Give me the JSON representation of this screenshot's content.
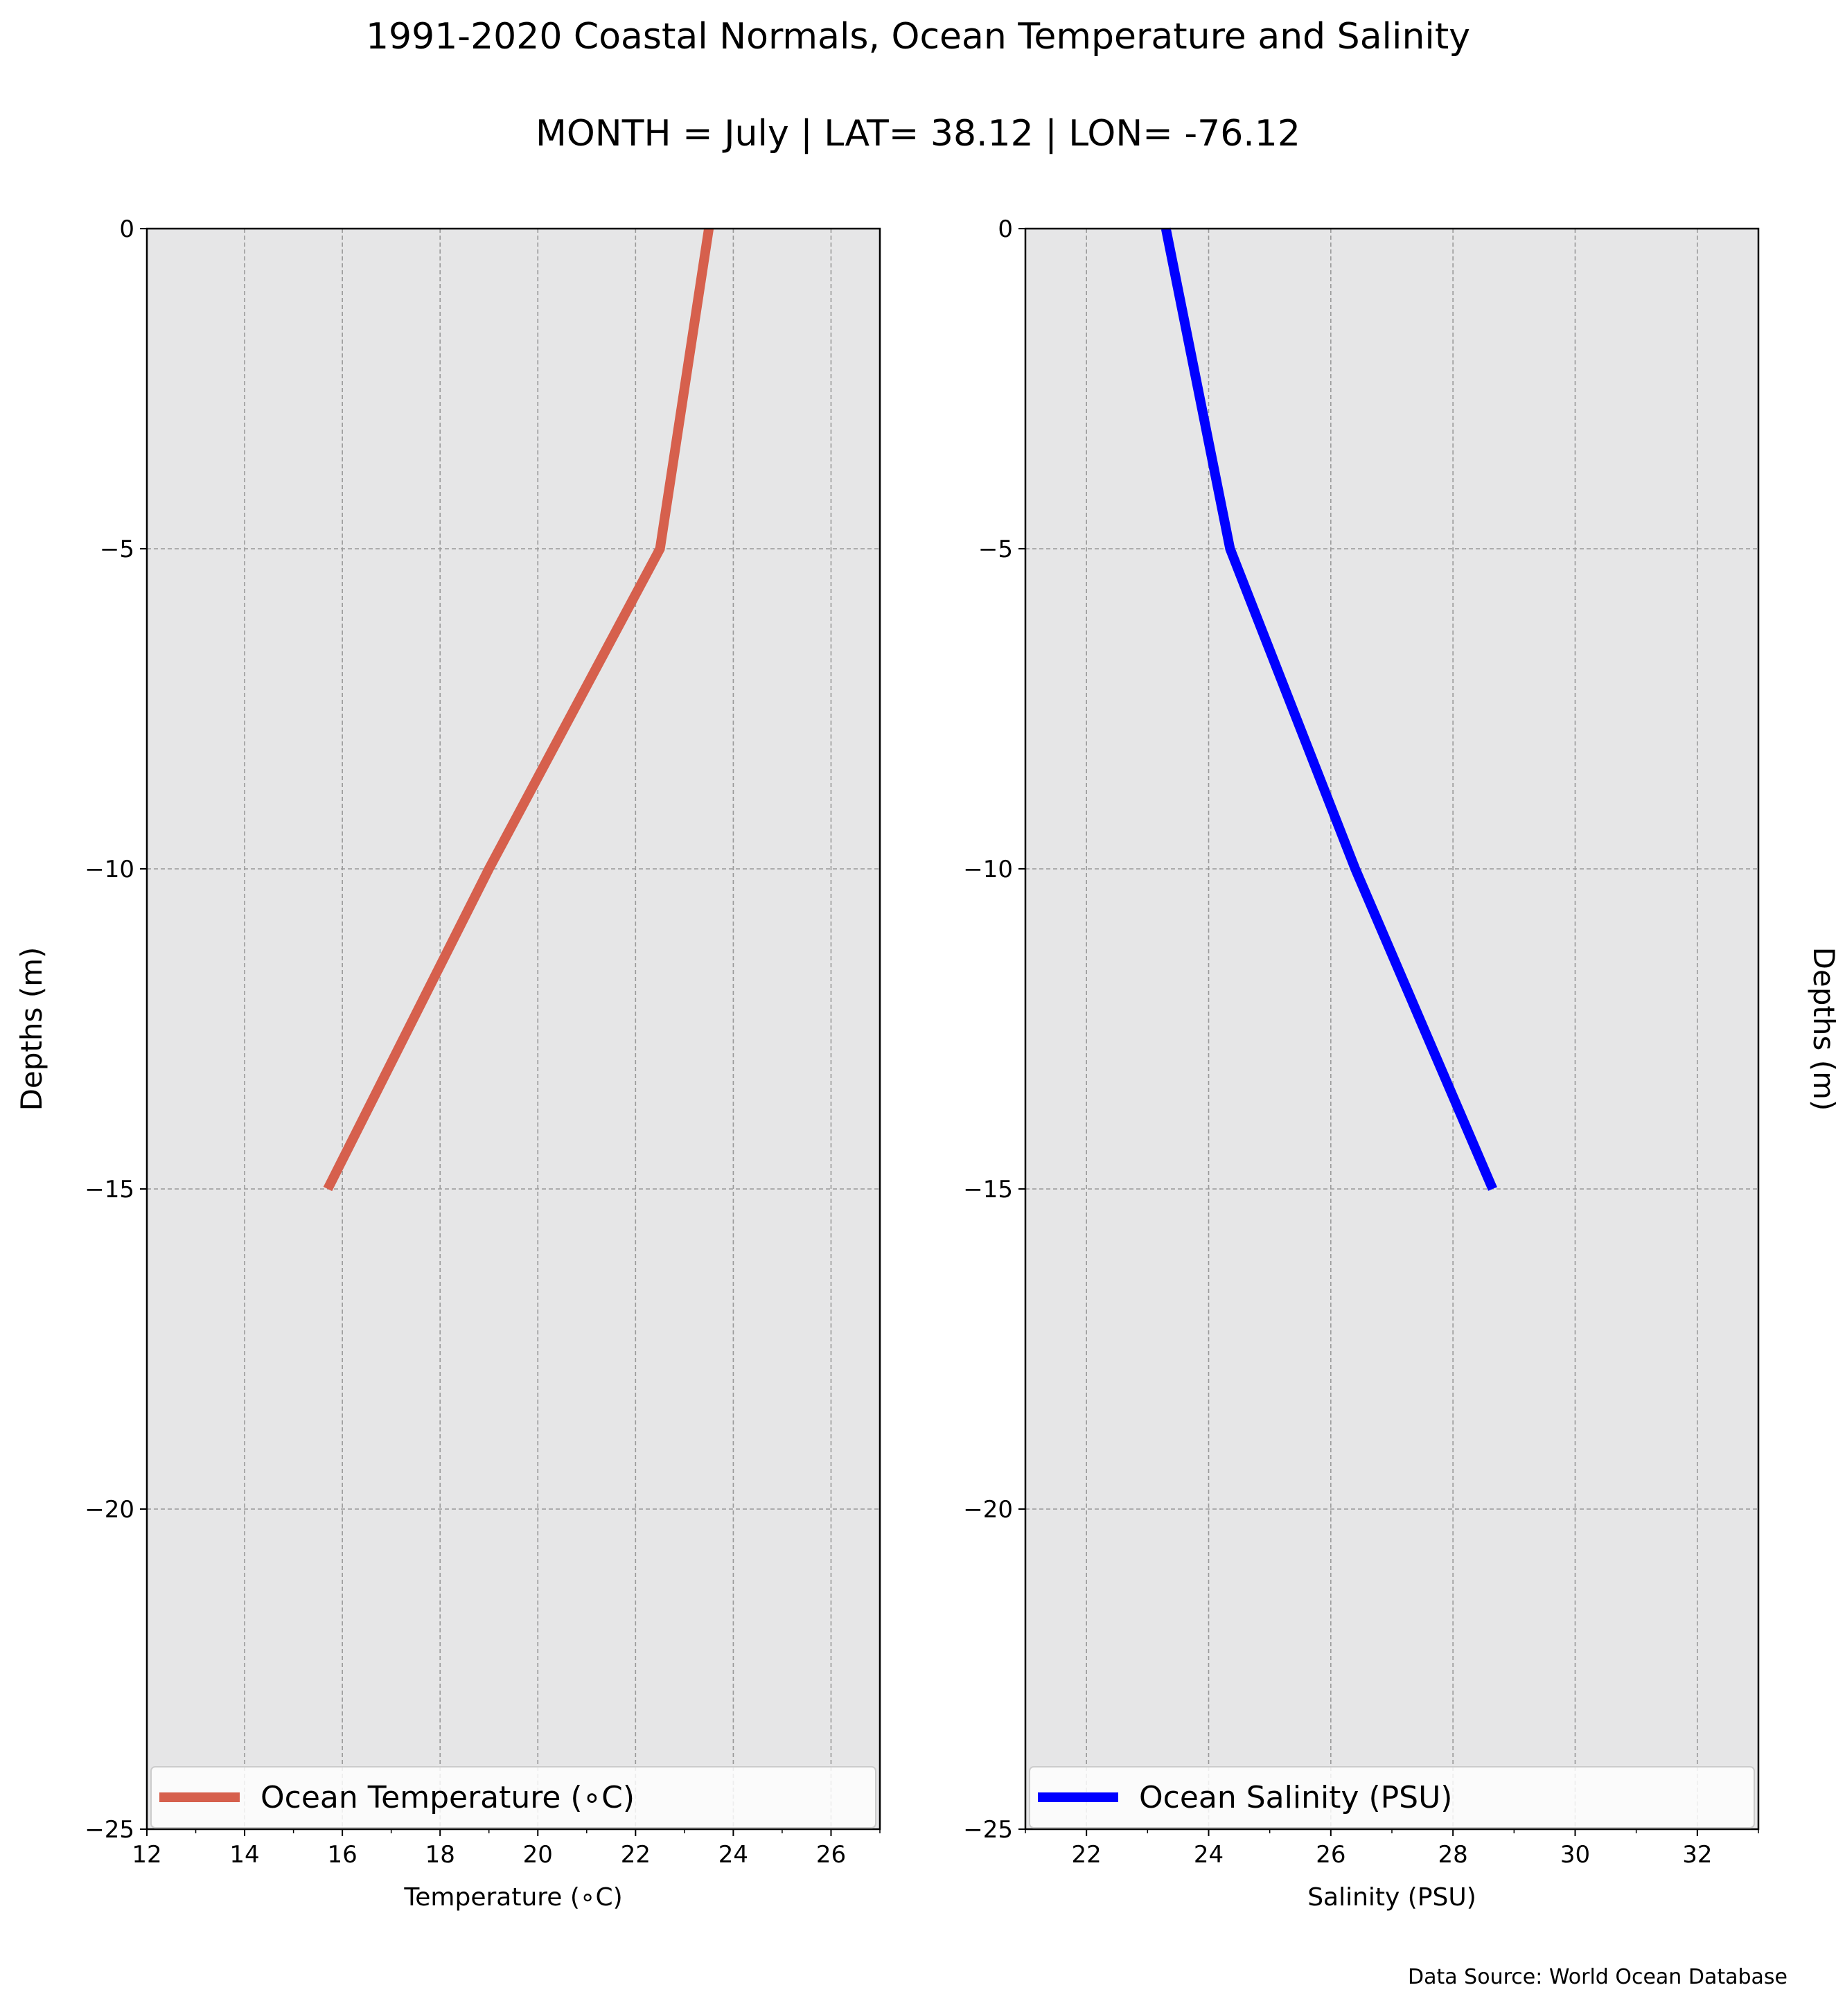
{
  "title": "1991-2020 Coastal Normals, Ocean Temperature and Salinity",
  "subtitle": "MONTH = July | LAT= 38.12 | LON= -76.12",
  "source": "Data Source: World Ocean Database",
  "colors": {
    "background": "#ffffff",
    "plot_bg": "#e6e6e7",
    "grid": "#999999"
  },
  "chart_data": [
    {
      "type": "line",
      "xlabel": "Temperature (∘C)",
      "ylabel": "Depths (m)",
      "xlim": [
        12,
        27
      ],
      "ylim": [
        -25,
        0
      ],
      "xticks": [
        12,
        14,
        16,
        18,
        20,
        22,
        24,
        26
      ],
      "yticks": [
        0,
        -5,
        -10,
        -15,
        -20,
        -25
      ],
      "ytick_labels": [
        "0",
        "−5",
        "−10",
        "−15",
        "−20",
        "−25"
      ],
      "ylabel_side": "left",
      "grid": true,
      "legend_position": "bottom",
      "series": [
        {
          "name": "Ocean Temperature (∘C)",
          "color": "#d6604d",
          "x": [
            23.5,
            22.5,
            19.0,
            15.7
          ],
          "y": [
            0,
            -5,
            -10,
            -15
          ]
        }
      ]
    },
    {
      "type": "line",
      "xlabel": "Salinity (PSU)",
      "ylabel": "Depths (m)",
      "xlim": [
        21,
        33
      ],
      "ylim": [
        -25,
        0
      ],
      "xticks": [
        22,
        24,
        26,
        28,
        30,
        32
      ],
      "yticks": [
        0,
        -5,
        -10,
        -15,
        -20,
        -25
      ],
      "ytick_labels": [
        "0",
        "−5",
        "−10",
        "−15",
        "−20",
        "−25"
      ],
      "ylabel_side": "right",
      "grid": true,
      "legend_position": "bottom",
      "series": [
        {
          "name": "Ocean Salinity (PSU)",
          "color": "#0000ff",
          "x": [
            23.3,
            24.35,
            26.4,
            28.65
          ],
          "y": [
            0,
            -5,
            -10,
            -15
          ]
        }
      ]
    }
  ]
}
